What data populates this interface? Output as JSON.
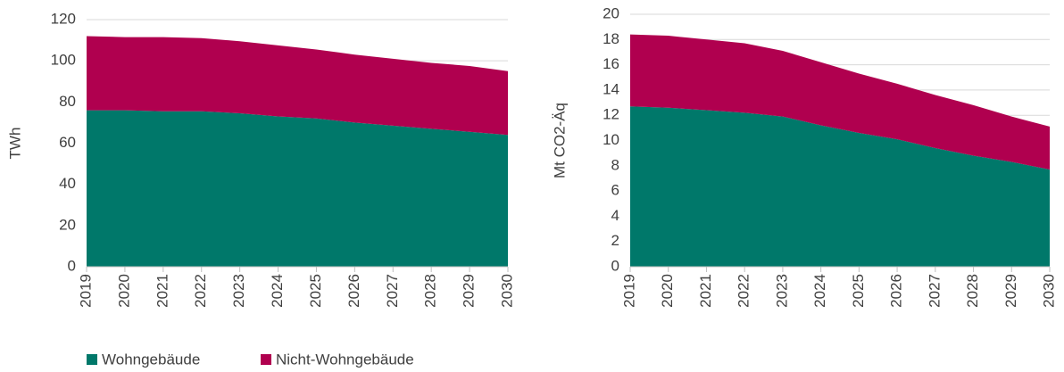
{
  "chart_data": [
    {
      "type": "stacked_area",
      "ylabel": "TWh",
      "categories": [
        "2019",
        "2020",
        "2021",
        "2022",
        "2023",
        "2024",
        "2025",
        "2026",
        "2027",
        "2028",
        "2029",
        "2030"
      ],
      "series": [
        {
          "name": "Wohngebäude",
          "color": "#00786a",
          "values": [
            76,
            76,
            75.5,
            75.5,
            74.5,
            73,
            72,
            70,
            68.5,
            67,
            65.5,
            64
          ]
        },
        {
          "name": "Nicht-Wohngebäude",
          "color": "#b0004f",
          "values": [
            36,
            35.5,
            36,
            35.5,
            35,
            34.5,
            33.5,
            33,
            32.5,
            32,
            32,
            31
          ]
        }
      ],
      "ylim": [
        0,
        120
      ],
      "yticks": [
        0,
        20,
        40,
        60,
        80,
        100,
        120
      ],
      "grid": true
    },
    {
      "type": "stacked_area",
      "ylabel": "Mt CO2-Äq",
      "categories": [
        "2019",
        "2020",
        "2021",
        "2022",
        "2023",
        "2024",
        "2025",
        "2026",
        "2027",
        "2028",
        "2029",
        "2030"
      ],
      "series": [
        {
          "color": "#00786a",
          "values": [
            12.7,
            12.6,
            12.4,
            12.2,
            11.9,
            11.2,
            10.6,
            10.1,
            9.4,
            8.8,
            8.3,
            7.7
          ]
        },
        {
          "color": "#b0004f",
          "values": [
            5.7,
            5.7,
            5.6,
            5.5,
            5.2,
            5.0,
            4.7,
            4.4,
            4.2,
            4.0,
            3.6,
            3.4
          ]
        }
      ],
      "ylim": [
        0,
        20
      ],
      "yticks": [
        0,
        2,
        4,
        6,
        8,
        10,
        12,
        14,
        16,
        18,
        20
      ],
      "grid": true
    }
  ]
}
